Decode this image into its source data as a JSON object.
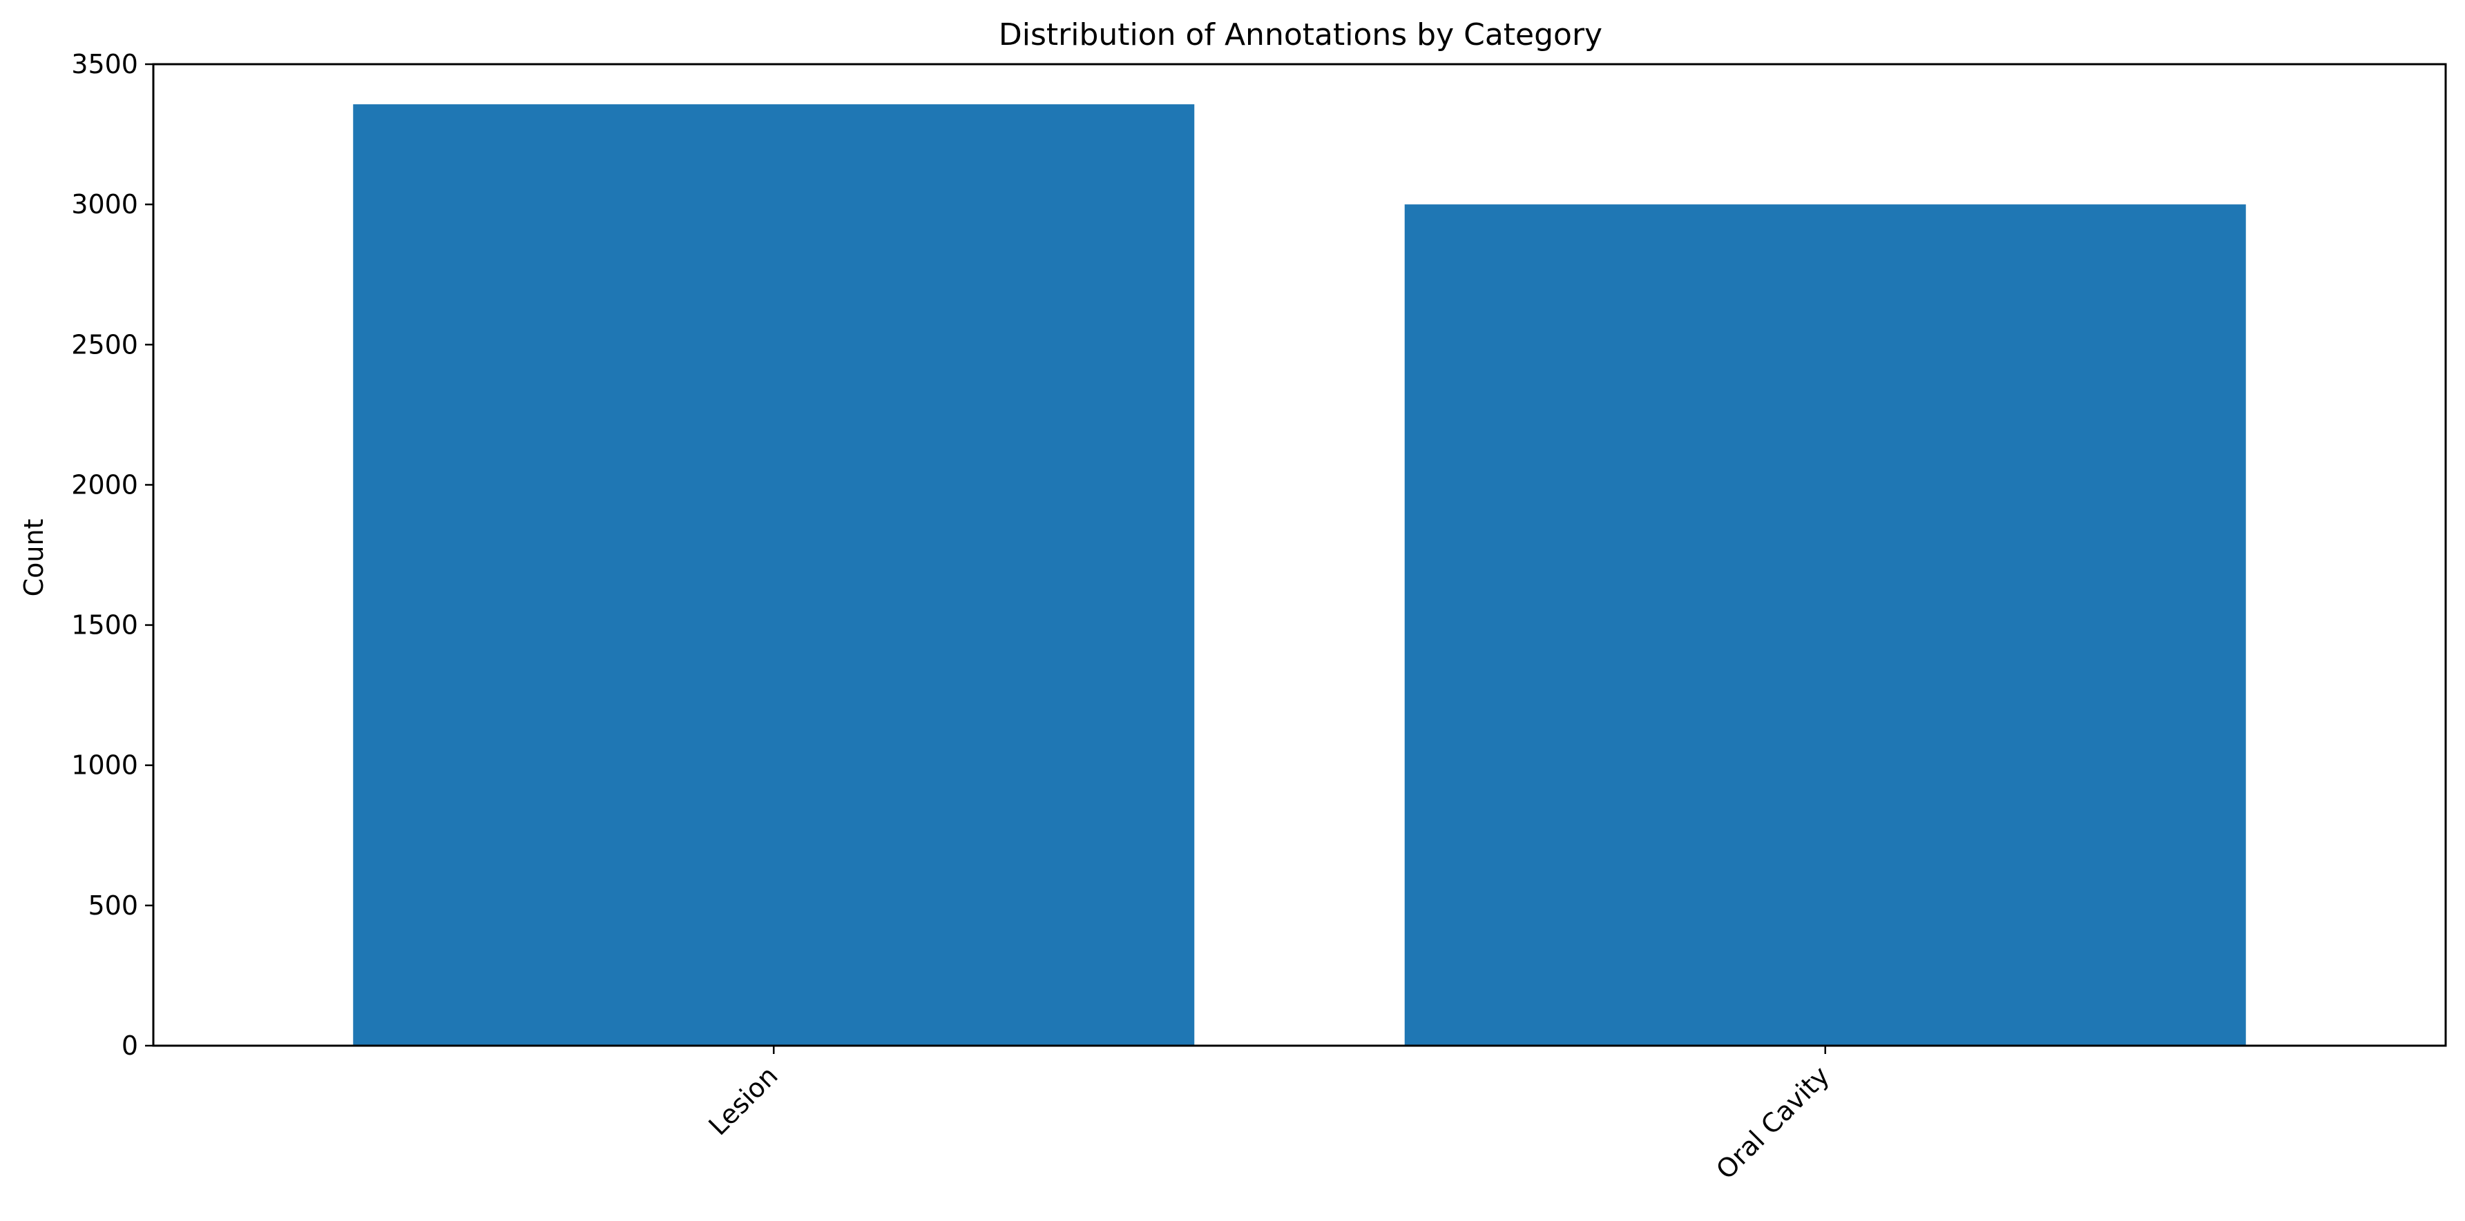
{
  "chart_data": {
    "type": "bar",
    "title": "Distribution of Annotations by Category",
    "xlabel": "",
    "ylabel": "Count",
    "categories": [
      "Lesion",
      "Oral Cavity"
    ],
    "values": [
      3357,
      3000
    ],
    "ylim": [
      0,
      3500
    ],
    "yticks": [
      0,
      500,
      1000,
      1500,
      2000,
      2500,
      3000,
      3500
    ],
    "grid": false,
    "legend": "none",
    "colors": {
      "bar": "#1f77b4",
      "axis": "#000000",
      "background": "#ffffff"
    }
  }
}
